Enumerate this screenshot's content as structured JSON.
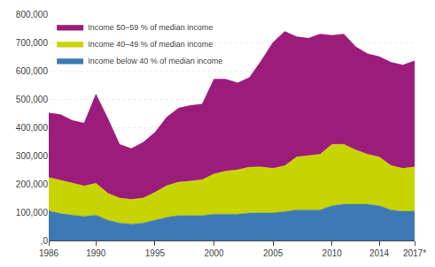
{
  "chart_data": {
    "type": "area",
    "stacked": true,
    "x": [
      1986,
      1987,
      1988,
      1989,
      1990,
      1991,
      1992,
      1993,
      1994,
      1995,
      1996,
      1997,
      1998,
      1999,
      2000,
      2001,
      2002,
      2003,
      2004,
      2005,
      2006,
      2007,
      2008,
      2009,
      2010,
      2011,
      2012,
      2013,
      2014,
      2015,
      2016,
      2017
    ],
    "series": [
      {
        "name": "Income below 40 % of median income",
        "color": "#3d7ab5",
        "values": [
          105000,
          95000,
          90000,
          85000,
          90000,
          72000,
          62000,
          58000,
          62000,
          72000,
          82000,
          88000,
          88000,
          88000,
          93000,
          93000,
          93000,
          97000,
          98000,
          98000,
          102000,
          108000,
          108000,
          108000,
          123000,
          128000,
          128000,
          128000,
          123000,
          108000,
          103000,
          103000
        ]
      },
      {
        "name": "Income 40–49 % of median income",
        "color": "#c8d400",
        "values": [
          118000,
          118000,
          112000,
          108000,
          112000,
          95000,
          88000,
          87000,
          88000,
          98000,
          112000,
          118000,
          122000,
          127000,
          142000,
          152000,
          157000,
          162000,
          162000,
          157000,
          162000,
          187000,
          192000,
          197000,
          217000,
          212000,
          192000,
          177000,
          172000,
          157000,
          152000,
          157000
        ]
      },
      {
        "name": "Income 50–59 % of median income",
        "color": "#9b1c7a",
        "values": [
          228000,
          232000,
          222000,
          222000,
          315000,
          265000,
          190000,
          180000,
          197000,
          212000,
          242000,
          262000,
          267000,
          267000,
          335000,
          325000,
          307000,
          317000,
          375000,
          445000,
          475000,
          425000,
          415000,
          425000,
          385000,
          390000,
          365000,
          355000,
          355000,
          365000,
          365000,
          375000
        ]
      }
    ],
    "xlim": [
      1986,
      2017
    ],
    "xticks": [
      1986,
      1990,
      1995,
      2000,
      2005,
      2010,
      2014,
      {
        "value": 2017,
        "label": "2017*"
      }
    ],
    "ylim": [
      0,
      800000
    ],
    "yticks": [
      {
        "value": 0,
        "label": ",0"
      },
      {
        "value": 100000,
        "label": "100,000"
      },
      {
        "value": 200000,
        "label": "200,000"
      },
      {
        "value": 300000,
        "label": "300,000"
      },
      {
        "value": 400000,
        "label": "400,000"
      },
      {
        "value": 500000,
        "label": "500,000"
      },
      {
        "value": 600000,
        "label": "600,000"
      },
      {
        "value": 700000,
        "label": "700,000"
      },
      {
        "value": 800000,
        "label": "800,000"
      }
    ],
    "grid": true,
    "legend": "upper left"
  }
}
